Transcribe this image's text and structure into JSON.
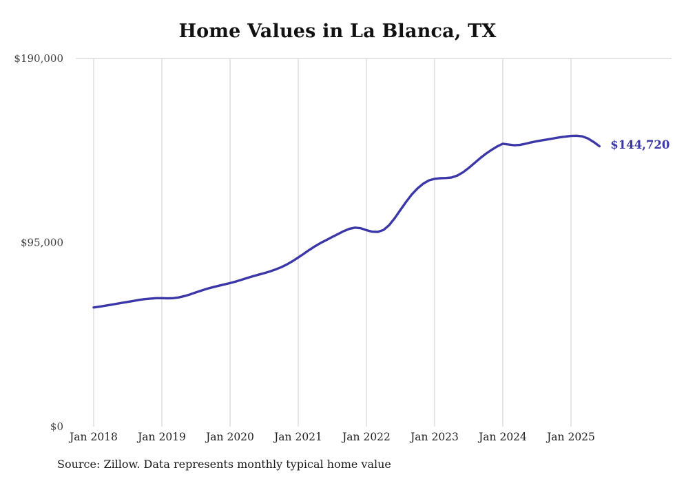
{
  "page": {
    "title": "Home Values in La Blanca, TX",
    "source_note": "Source: Zillow. Data represents monthly typical home value"
  },
  "chart_data": {
    "type": "line",
    "title": "Home Values in La Blanca, TX",
    "series_name": "Monthly typical home value",
    "unit": "USD",
    "legend_position": "none",
    "grid": "vertical-yearly",
    "ylim": [
      0,
      190000
    ],
    "y_ticks": [
      {
        "label": "$0",
        "value": 0
      },
      {
        "label": "$95,000",
        "value": 95000
      },
      {
        "label": "$190,000",
        "value": 190000
      }
    ],
    "x_tick_labels": [
      "Jan 2018",
      "Jan 2019",
      "Jan 2020",
      "Jan 2021",
      "Jan 2022",
      "Jan 2023",
      "Jan 2024",
      "Jan 2025"
    ],
    "end_label": "$144,720",
    "line_color": "#3b37a8",
    "grid_color": "#cccccc",
    "x": [
      "2018-01",
      "2018-02",
      "2018-03",
      "2018-04",
      "2018-05",
      "2018-06",
      "2018-07",
      "2018-08",
      "2018-09",
      "2018-10",
      "2018-11",
      "2018-12",
      "2019-01",
      "2019-02",
      "2019-03",
      "2019-04",
      "2019-05",
      "2019-06",
      "2019-07",
      "2019-08",
      "2019-09",
      "2019-10",
      "2019-11",
      "2019-12",
      "2020-01",
      "2020-02",
      "2020-03",
      "2020-04",
      "2020-05",
      "2020-06",
      "2020-07",
      "2020-08",
      "2020-09",
      "2020-10",
      "2020-11",
      "2020-12",
      "2021-01",
      "2021-02",
      "2021-03",
      "2021-04",
      "2021-05",
      "2021-06",
      "2021-07",
      "2021-08",
      "2021-09",
      "2021-10",
      "2021-11",
      "2021-12",
      "2022-01",
      "2022-02",
      "2022-03",
      "2022-04",
      "2022-05",
      "2022-06",
      "2022-07",
      "2022-08",
      "2022-09",
      "2022-10",
      "2022-11",
      "2022-12",
      "2023-01",
      "2023-02",
      "2023-03",
      "2023-04",
      "2023-05",
      "2023-06",
      "2023-07",
      "2023-08",
      "2023-09",
      "2023-10",
      "2023-11",
      "2023-12",
      "2024-01",
      "2024-02",
      "2024-03",
      "2024-04",
      "2024-05",
      "2024-06",
      "2024-07",
      "2024-08",
      "2024-09",
      "2024-10",
      "2024-11",
      "2024-12",
      "2025-01",
      "2025-02",
      "2025-03",
      "2025-04",
      "2025-05",
      "2025-06"
    ],
    "values": [
      61500,
      61900,
      62400,
      62900,
      63400,
      63900,
      64400,
      64900,
      65400,
      65800,
      66100,
      66300,
      66300,
      66200,
      66300,
      66700,
      67400,
      68300,
      69300,
      70300,
      71200,
      72000,
      72700,
      73400,
      74100,
      74900,
      75800,
      76700,
      77600,
      78400,
      79200,
      80100,
      81100,
      82300,
      83700,
      85400,
      87300,
      89300,
      91300,
      93200,
      94900,
      96400,
      97900,
      99400,
      100900,
      102100,
      102700,
      102400,
      101400,
      100600,
      100500,
      101500,
      104000,
      107700,
      111900,
      116100,
      119900,
      123000,
      125400,
      127100,
      127900,
      128200,
      128300,
      128600,
      129600,
      131300,
      133500,
      136000,
      138500,
      140800,
      142800,
      144600,
      146000,
      145600,
      145200,
      145400,
      146000,
      146700,
      147300,
      147800,
      148300,
      148800,
      149300,
      149700,
      150000,
      150100,
      149800,
      148700,
      146900,
      144720
    ]
  }
}
